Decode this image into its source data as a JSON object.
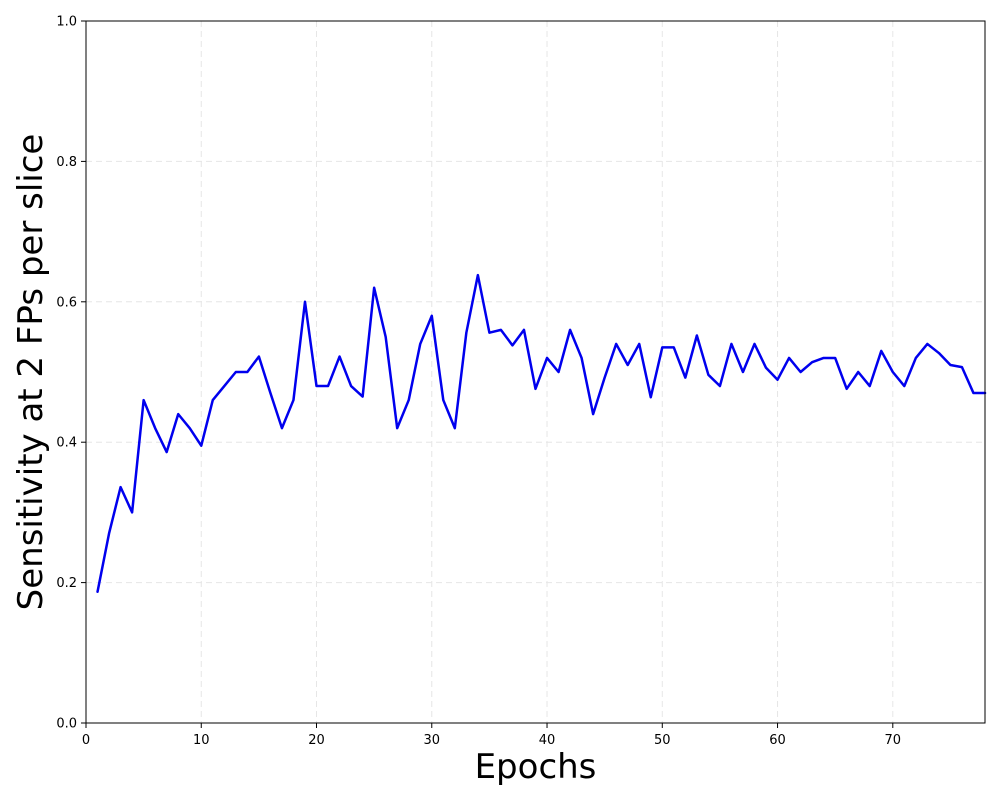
{
  "chart_data": {
    "type": "line",
    "title": "",
    "xlabel": "Epochs",
    "ylabel": "Sensitivity at 2 FPs per slice",
    "xlim": [
      0,
      78
    ],
    "ylim": [
      0.0,
      1.0
    ],
    "xticks": [
      0,
      10,
      20,
      30,
      40,
      50,
      60,
      70
    ],
    "xtick_labels": [
      "0",
      "10",
      "20",
      "30",
      "40",
      "50",
      "60",
      "70"
    ],
    "yticks": [
      0.0,
      0.2,
      0.4,
      0.6,
      0.8,
      1.0
    ],
    "ytick_labels": [
      "0.0",
      "0.2",
      "0.4",
      "0.6",
      "0.8",
      "1.0"
    ],
    "grid": true,
    "legend": false,
    "colors": {
      "line": "#0000ee",
      "grid": "#e6e6e6",
      "axis": "#000000"
    },
    "series": [
      {
        "x": [
          1,
          2,
          3,
          4,
          5,
          6,
          7,
          8,
          9,
          10,
          11,
          12,
          13,
          14,
          15,
          16,
          17,
          18,
          19,
          20,
          21,
          22,
          23,
          24,
          25,
          26,
          27,
          28,
          29,
          30,
          31,
          32,
          33,
          34,
          35,
          36,
          37,
          38,
          39,
          40,
          41,
          42,
          43,
          44,
          45,
          46,
          47,
          48,
          49,
          50,
          51,
          52,
          53,
          54,
          55,
          56,
          57,
          58,
          59,
          60,
          61,
          62,
          63,
          64,
          65,
          66,
          67,
          68,
          69,
          70,
          71,
          72,
          73,
          74,
          75,
          76,
          77,
          78
        ],
        "y": [
          0.187,
          0.27,
          0.336,
          0.3,
          0.46,
          0.42,
          0.386,
          0.44,
          0.42,
          0.395,
          0.46,
          0.48,
          0.5,
          0.5,
          0.522,
          0.47,
          0.42,
          0.46,
          0.6,
          0.48,
          0.48,
          0.522,
          0.48,
          0.465,
          0.62,
          0.55,
          0.42,
          0.46,
          0.54,
          0.58,
          0.46,
          0.42,
          0.556,
          0.638,
          0.556,
          0.56,
          0.538,
          0.56,
          0.476,
          0.52,
          0.5,
          0.56,
          0.52,
          0.44,
          0.492,
          0.54,
          0.51,
          0.54,
          0.464,
          0.535,
          0.535,
          0.492,
          0.552,
          0.496,
          0.48,
          0.54,
          0.5,
          0.54,
          0.506,
          0.489,
          0.52,
          0.5,
          0.514,
          0.52,
          0.52,
          0.476,
          0.5,
          0.48,
          0.53,
          0.5,
          0.48,
          0.52,
          0.54,
          0.527,
          0.51,
          0.507,
          0.47,
          0.47
        ]
      }
    ]
  }
}
